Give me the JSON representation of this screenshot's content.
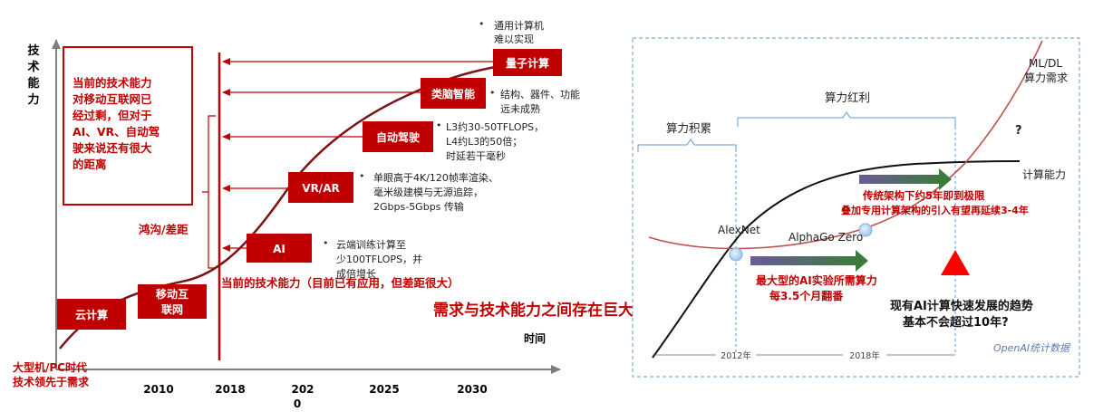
{
  "left": {
    "y_axis_label": [
      "技",
      "术",
      "能",
      "力"
    ],
    "x_axis_label": "时间",
    "years": [
      "2010",
      "2018",
      "202",
      "0",
      "2025",
      "2030"
    ],
    "origin_label": [
      "大型机/PC时代",
      "技术领先于需求"
    ],
    "callout": [
      "当前的技术能力",
      "对移动互联网已",
      "经过剩，但对于",
      "AI、VR、自动驾",
      "驶来说还有很大",
      "的距离"
    ],
    "gap_label": "鸿沟/差距",
    "current_ability": "当前的技术能力（目前已有应用，但差距很大）",
    "stages": {
      "cloud": "云计算",
      "mobile": [
        "移动互",
        "联网"
      ],
      "ai": "AI",
      "vrar": "VR/AR",
      "auto": "自动驾驶",
      "brain": "类脑智能",
      "quantum": "量子计算"
    },
    "notes": {
      "ai": [
        "云端训练计算至",
        "少100TFLOPS，并",
        "成倍增长"
      ],
      "vrar": [
        "单眼高于4K/120帧率渲染、",
        "毫米级建模与无源追踪，",
        "2Gbps-5Gbps 传输"
      ],
      "auto": [
        "L3约30-50TFLOPS，",
        "L4约L3的50倍；",
        "时延若干毫秒"
      ],
      "brain": [
        "结构、器件、功能",
        "远未成熟"
      ],
      "quantum": [
        "通用计算机",
        "难以实现"
      ]
    }
  },
  "center_caption": "需求与技术能力之间存在巨大鸿沟",
  "right": {
    "accumulation": "算力积累",
    "dividend": "算力红利",
    "mldl": [
      "ML/DL",
      "算力需求"
    ],
    "compute": "计算能力",
    "question": "?",
    "alexnet": "AlexNet",
    "alphago": "AlphaGo Zero",
    "limit_note": [
      "传统架构下约5年即到极限",
      "叠加专用计算架构的引入有望再延续3-4年"
    ],
    "doubling_note": [
      "最大型的AI实验所需算力",
      "每3.5个月翻番"
    ],
    "conclusion": [
      "现有AI计算快速发展的趋势",
      "基本不会超过10年?"
    ],
    "year_2012": "2012年",
    "year_2018": "2018年",
    "source": "OpenAI统计数据"
  },
  "colors": {
    "red": "#c00000",
    "dark_red": "#a50f15",
    "purple": "#6b5a9a",
    "dashed_border": "#5b9bd5"
  }
}
